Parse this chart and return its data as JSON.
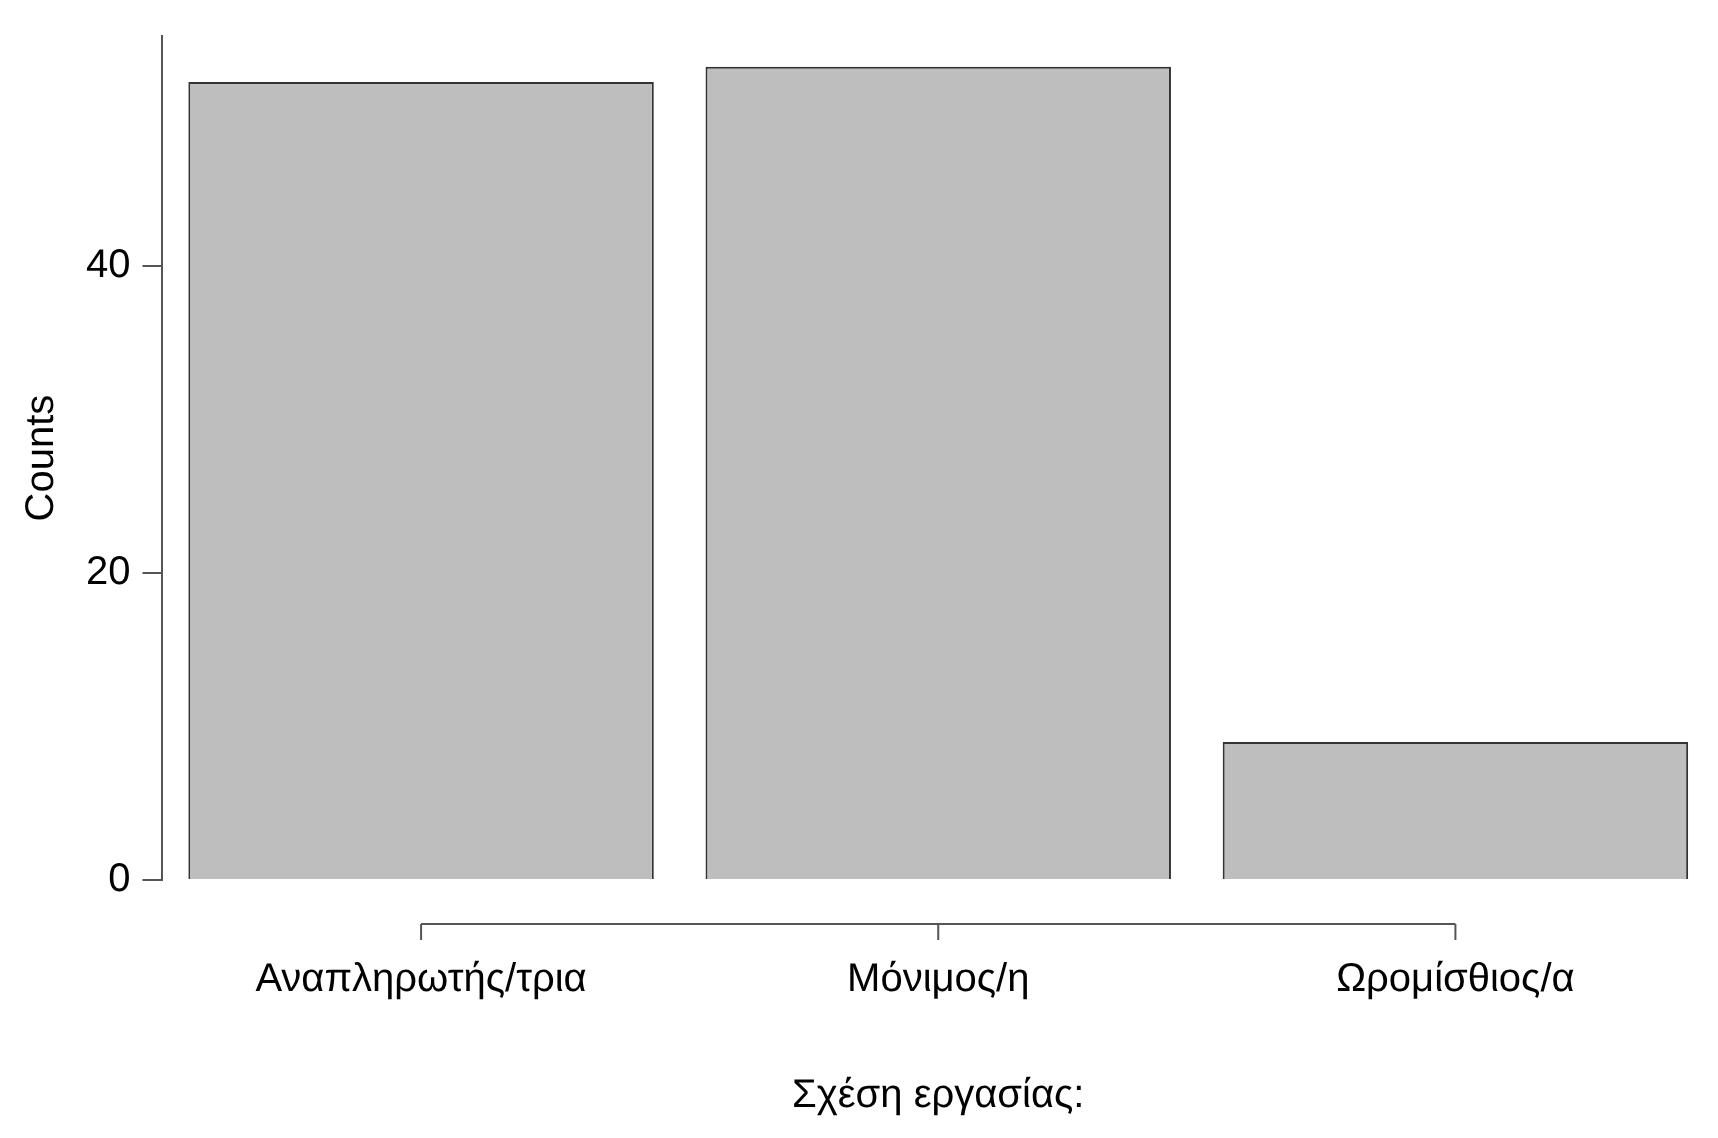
{
  "chart_data": {
    "type": "bar",
    "categories": [
      "Αναπληρωτής/τρια",
      "Μόνιμος/η",
      "Ωρομίσθιος/α"
    ],
    "values": [
      52,
      53,
      9
    ],
    "color": "#bebebe",
    "xlabel": "Σχέση εργασίας:",
    "ylabel": "Counts",
    "ylim": [
      0,
      55
    ],
    "yticks": [
      0,
      20,
      40
    ],
    "grid": false,
    "legend": false
  }
}
